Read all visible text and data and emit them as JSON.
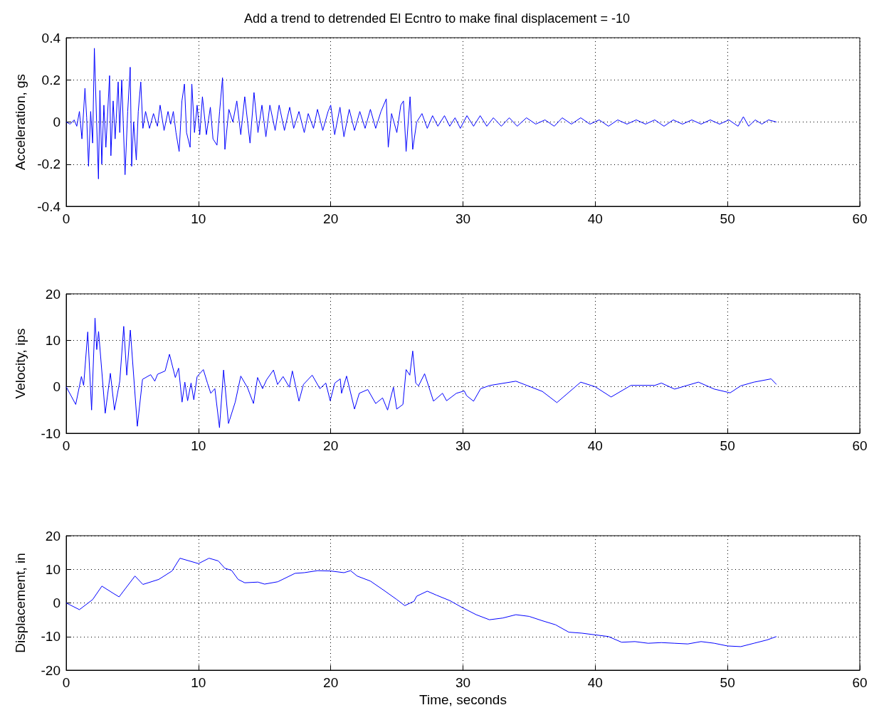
{
  "chart_data": [
    {
      "type": "line",
      "title": "Add a trend to detrended El Ecntro to make final displacement = -10",
      "ylabel": "Acceleration, gs",
      "xlim": [
        0,
        60
      ],
      "xticks": [
        0,
        10,
        20,
        30,
        40,
        50,
        60
      ],
      "ylim": [
        -0.4,
        0.4
      ],
      "yticks": [
        -0.4,
        -0.2,
        0,
        0.2,
        0.4
      ],
      "grid": true,
      "marker": "none",
      "series": [
        {
          "color": "#0000ff",
          "x": [
            0,
            0.3,
            0.6,
            0.8,
            1.0,
            1.19,
            1.42,
            1.55,
            1.69,
            1.85,
            2.0,
            2.13,
            2.3,
            2.44,
            2.55,
            2.69,
            2.85,
            3.0,
            3.28,
            3.38,
            3.55,
            3.7,
            3.93,
            4.05,
            4.2,
            4.45,
            4.65,
            4.84,
            4.95,
            5.1,
            5.3,
            5.45,
            5.64,
            5.8,
            6.0,
            6.3,
            6.6,
            6.9,
            7.1,
            7.4,
            7.7,
            7.9,
            8.1,
            8.3,
            8.54,
            8.75,
            8.94,
            9.1,
            9.37,
            9.5,
            9.7,
            9.9,
            10.1,
            10.3,
            10.6,
            10.9,
            11.1,
            11.4,
            11.6,
            11.82,
            12.0,
            12.3,
            12.6,
            12.9,
            13.2,
            13.5,
            13.9,
            14.2,
            14.5,
            14.8,
            15.1,
            15.4,
            15.8,
            16.1,
            16.5,
            16.9,
            17.2,
            17.6,
            18.0,
            18.3,
            18.7,
            19.0,
            19.4,
            19.8,
            20.0,
            20.3,
            20.7,
            21.0,
            21.4,
            21.8,
            22.2,
            22.6,
            23.0,
            23.4,
            23.8,
            24.2,
            24.35,
            24.6,
            25.0,
            25.3,
            25.5,
            25.7,
            26.0,
            26.2,
            26.5,
            26.9,
            27.3,
            27.7,
            28.1,
            28.6,
            29.0,
            29.4,
            29.8,
            30.3,
            30.8,
            31.3,
            31.8,
            32.3,
            32.9,
            33.5,
            34.1,
            34.8,
            35.5,
            36.2,
            36.9,
            37.5,
            38.2,
            38.9,
            39.6,
            40.3,
            41.0,
            41.7,
            42.4,
            43.1,
            43.8,
            44.5,
            45.2,
            45.9,
            46.6,
            47.3,
            48.0,
            48.7,
            49.4,
            50.1,
            50.8,
            51.2,
            51.6,
            52.1,
            52.6,
            53.1,
            53.7
          ],
          "values": [
            0,
            -0.01,
            0.01,
            -0.02,
            0.05,
            -0.08,
            0.16,
            0.02,
            -0.21,
            0.05,
            -0.1,
            0.35,
            0.0,
            -0.27,
            0.15,
            -0.2,
            0.08,
            -0.12,
            0.22,
            -0.16,
            0.1,
            -0.08,
            0.19,
            -0.05,
            0.2,
            -0.25,
            0.05,
            0.26,
            -0.21,
            0.0,
            -0.18,
            0.05,
            0.19,
            -0.03,
            0.05,
            -0.03,
            0.04,
            -0.02,
            0.08,
            -0.04,
            0.05,
            -0.01,
            0.05,
            -0.05,
            -0.14,
            0.1,
            0.18,
            -0.05,
            -0.12,
            0.18,
            -0.05,
            0.08,
            -0.06,
            0.12,
            -0.06,
            0.07,
            -0.08,
            -0.11,
            0.05,
            0.21,
            -0.13,
            0.06,
            0.0,
            0.1,
            -0.06,
            0.12,
            -0.1,
            0.14,
            -0.05,
            0.08,
            -0.07,
            0.08,
            -0.04,
            0.08,
            -0.04,
            0.07,
            -0.03,
            0.05,
            -0.05,
            0.04,
            -0.03,
            0.06,
            -0.04,
            0.05,
            0.08,
            -0.06,
            0.07,
            -0.07,
            0.06,
            -0.04,
            0.05,
            -0.03,
            0.06,
            -0.03,
            0.05,
            0.11,
            -0.12,
            0.04,
            -0.05,
            0.08,
            0.1,
            -0.14,
            0.12,
            -0.13,
            0.0,
            0.04,
            -0.03,
            0.03,
            -0.02,
            0.03,
            -0.02,
            0.02,
            -0.03,
            0.03,
            -0.02,
            0.03,
            -0.02,
            0.02,
            -0.02,
            0.02,
            -0.02,
            0.02,
            -0.01,
            0.01,
            -0.02,
            0.02,
            -0.01,
            0.02,
            -0.01,
            0.01,
            -0.02,
            0.01,
            -0.01,
            0.01,
            -0.01,
            0.01,
            -0.02,
            0.01,
            -0.01,
            0.01,
            -0.01,
            0.01,
            -0.01,
            0.01,
            -0.02,
            0.025,
            -0.02,
            0.01,
            -0.01,
            0.01,
            0.0
          ]
        }
      ]
    },
    {
      "type": "line",
      "ylabel": "Velocity, ips",
      "xlim": [
        0,
        60
      ],
      "xticks": [
        0,
        10,
        20,
        30,
        40,
        50,
        60
      ],
      "ylim": [
        -10,
        20
      ],
      "yticks": [
        -10,
        0,
        10,
        20
      ],
      "grid": true,
      "marker": "none",
      "series": [
        {
          "color": "#0000ff",
          "x": [
            0,
            0.72,
            1.15,
            1.32,
            1.63,
            1.92,
            2.18,
            2.31,
            2.45,
            2.95,
            3.34,
            3.65,
            4.05,
            4.35,
            4.58,
            4.85,
            5.38,
            5.77,
            6.39,
            6.7,
            6.91,
            7.48,
            7.81,
            8.25,
            8.5,
            8.76,
            8.97,
            9.18,
            9.44,
            9.65,
            9.9,
            10.37,
            10.68,
            10.93,
            11.24,
            11.59,
            11.9,
            12.27,
            12.78,
            13.2,
            13.71,
            14.16,
            14.47,
            14.85,
            15.15,
            15.67,
            15.98,
            16.4,
            16.87,
            17.1,
            17.6,
            17.94,
            18.6,
            19.18,
            19.63,
            19.96,
            20.31,
            20.72,
            20.82,
            21.2,
            21.8,
            22.16,
            22.8,
            23.4,
            23.92,
            24.3,
            24.74,
            24.99,
            25.46,
            25.7,
            25.98,
            26.2,
            26.43,
            26.64,
            27.1,
            27.77,
            28.45,
            28.76,
            29.5,
            30.1,
            30.27,
            30.8,
            31.34,
            32.06,
            34.0,
            36.0,
            37.1,
            38.9,
            40.0,
            41.2,
            42.7,
            44.5,
            45.0,
            46.0,
            47.8,
            49.0,
            50.2,
            51.0,
            52.0,
            53.3,
            53.7
          ],
          "values": [
            0,
            -3.8,
            2.2,
            0.3,
            11.8,
            -5,
            14.8,
            8,
            11.9,
            -5.7,
            2.9,
            -5,
            1.2,
            13,
            2.5,
            12.2,
            -8.5,
            1.6,
            2.6,
            1.2,
            2.7,
            3.4,
            7,
            2,
            4,
            -3.3,
            1,
            -3,
            0.8,
            -2.8,
            2.2,
            3.7,
            0.8,
            -1.4,
            -0.4,
            -8.8,
            3.6,
            -7.9,
            -3.3,
            2.3,
            -0.2,
            -3.6,
            2,
            -0.4,
            1.5,
            3.6,
            0.5,
            2.2,
            -0.1,
            3.4,
            -3.1,
            0.5,
            2.5,
            -0.4,
            0.8,
            -3,
            0.8,
            1.7,
            -1.4,
            2.3,
            -4.8,
            -1.4,
            -0.6,
            -3.6,
            -2.4,
            -5,
            -0.1,
            -4.8,
            -3.8,
            3.7,
            2.5,
            7.7,
            0.8,
            0.2,
            2.8,
            -3.1,
            -1.4,
            -3,
            -1.4,
            -0.9,
            -1.9,
            -3.1,
            -0.4,
            0.3,
            1.2,
            -1,
            -3.4,
            1,
            0,
            -2.2,
            0.3,
            0.3,
            0.8,
            -0.5,
            1,
            -0.5,
            -1.3,
            0.2,
            1,
            1.7,
            0.5
          ]
        }
      ]
    },
    {
      "type": "line",
      "ylabel": "Displacement, in",
      "xlabel": "Time, seconds",
      "xlim": [
        0,
        60
      ],
      "xticks": [
        0,
        10,
        20,
        30,
        40,
        50,
        60
      ],
      "ylim": [
        -20,
        20
      ],
      "yticks": [
        -20,
        -10,
        0,
        10,
        20
      ],
      "grid": true,
      "marker": "none",
      "series": [
        {
          "color": "#0000ff",
          "x": [
            0,
            1,
            2,
            2.7,
            3.5,
            4,
            5.2,
            5.8,
            7,
            8,
            8.6,
            10,
            10.8,
            11.5,
            12,
            12.5,
            13,
            13.5,
            14.5,
            15,
            16,
            17.3,
            18,
            19,
            20,
            21,
            21.5,
            22,
            23,
            24,
            25,
            25.6,
            26.3,
            26.5,
            27.3,
            28,
            29,
            30,
            31,
            32,
            33,
            34,
            35,
            36,
            37,
            38,
            39,
            40,
            41,
            42,
            43,
            44,
            45,
            46,
            47,
            48,
            49,
            50,
            51,
            52,
            53,
            53.7
          ],
          "values": [
            0,
            -2,
            1,
            5,
            3,
            1.8,
            8,
            5.5,
            7,
            9.5,
            13.3,
            11.7,
            13.3,
            12.5,
            10.3,
            9.7,
            7,
            6,
            6.2,
            5.6,
            6.3,
            8.8,
            9,
            9.6,
            9.5,
            9,
            9.6,
            8,
            6.5,
            3.8,
            1,
            -0.8,
            0.5,
            2,
            3.5,
            2.3,
            0.7,
            -1.5,
            -3.5,
            -5,
            -4.5,
            -3.5,
            -4,
            -5.3,
            -6.5,
            -8.7,
            -9,
            -9.5,
            -10,
            -11.7,
            -11.5,
            -12,
            -11.8,
            -12,
            -12.2,
            -11.5,
            -12,
            -12.8,
            -13,
            -12,
            -11,
            -10
          ]
        }
      ]
    }
  ]
}
